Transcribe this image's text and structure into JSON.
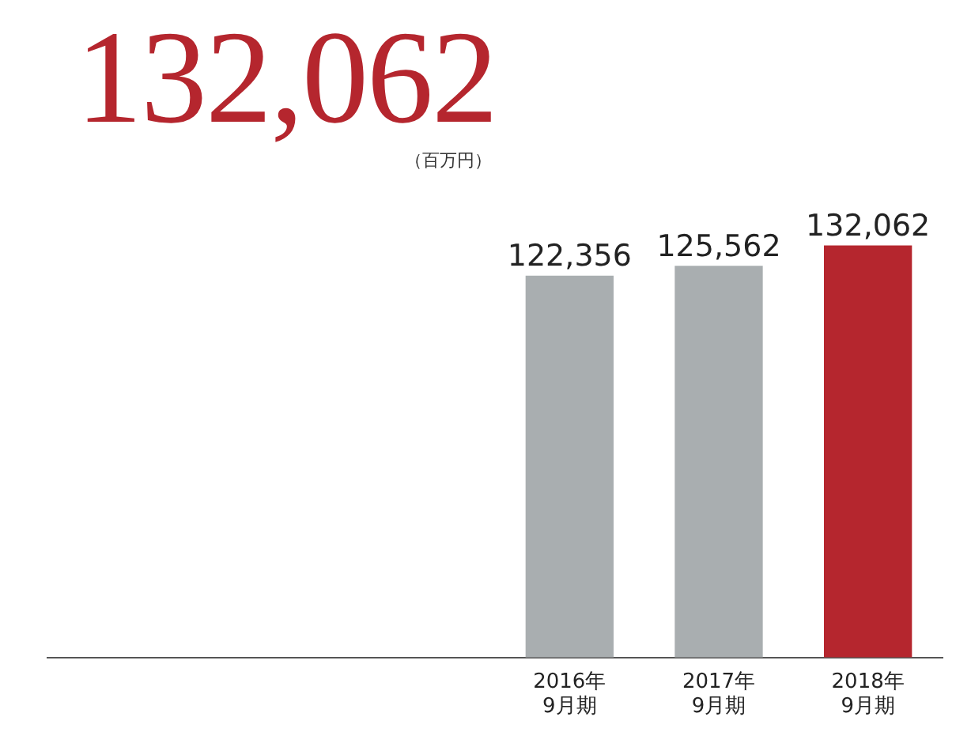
{
  "chart_data": {
    "type": "bar",
    "title": "132,062",
    "subtitle": "（百万円）",
    "categories": [
      null,
      null,
      null,
      "2016年\n9月期",
      "2017年\n9月期",
      "2018年\n9月期"
    ],
    "values": [
      null,
      null,
      null,
      122356,
      125562,
      132062
    ],
    "colors": [
      "#a9aeb0",
      "#a9aeb0",
      "#a9aeb0",
      "#a9aeb0",
      "#a9aeb0",
      "#b5262e"
    ],
    "value_labels": [
      null,
      null,
      null,
      "122,356",
      "125,562",
      "132,062"
    ],
    "grid": false,
    "legend": false
  }
}
